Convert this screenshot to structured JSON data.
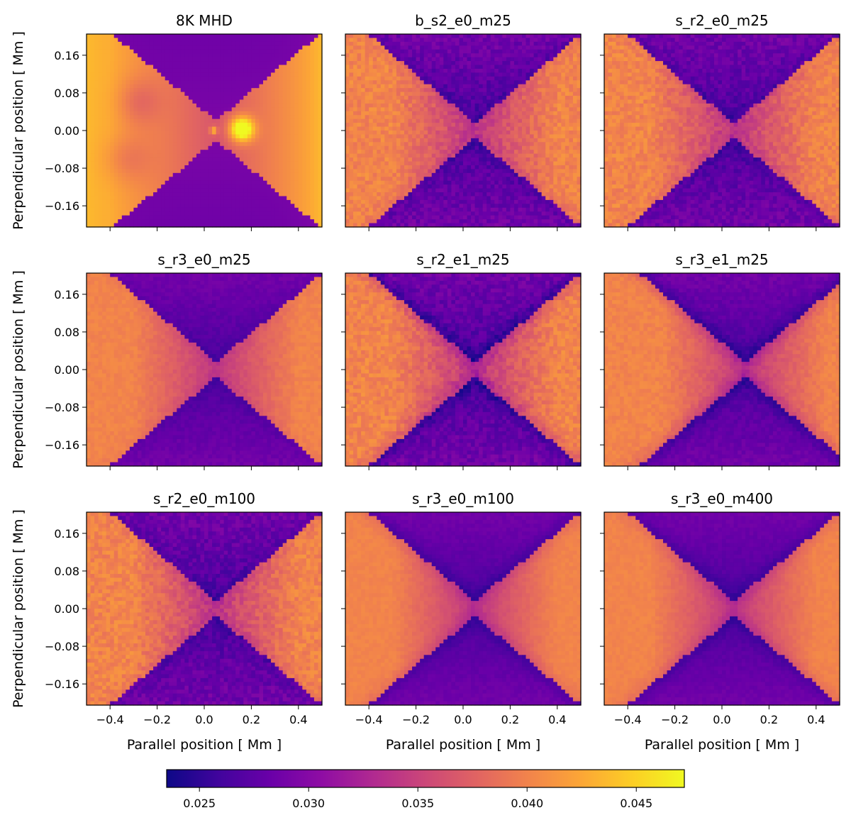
{
  "chart_data": {
    "type": "heatmap",
    "layout": {
      "rows": 3,
      "cols": 3,
      "sharex": true,
      "sharey": true
    },
    "xlabel": "Parallel position [ Mm ]",
    "ylabel": "Perpendicular position [ Mm ]",
    "xlim": [
      -0.5,
      0.5
    ],
    "ylim": [
      -0.205,
      0.205
    ],
    "xticks": [
      -0.4,
      -0.2,
      0.0,
      0.2,
      0.4
    ],
    "xtick_labels": [
      "−0.4",
      "−0.2",
      "0.0",
      "0.2",
      "0.4"
    ],
    "yticks": [
      0.16,
      0.08,
      0.0,
      -0.08,
      -0.16
    ],
    "ytick_labels": [
      "0.16",
      "0.08",
      "0.00",
      "−0.08",
      "−0.16"
    ],
    "colormap": "plasma",
    "colorbar": {
      "range": [
        0.0235,
        0.0472
      ],
      "ticks": [
        0.025,
        0.03,
        0.035,
        0.04,
        0.045
      ],
      "tick_labels": [
        "0.025",
        "0.030",
        "0.035",
        "0.040",
        "0.045"
      ],
      "orientation": "horizontal",
      "placement": "bottom"
    },
    "panels": [
      {
        "title": "8K MHD",
        "kind": "mhd",
        "x_point": 0.05,
        "sharpness": 0.0,
        "noise": 0.0
      },
      {
        "title": "b_s2_e0_m25",
        "kind": "xpoint",
        "x_point": 0.05,
        "sharpness": 0.3,
        "noise": 0.9
      },
      {
        "title": "s_r2_e0_m25",
        "kind": "xpoint",
        "x_point": 0.05,
        "sharpness": 0.3,
        "noise": 0.9
      },
      {
        "title": "s_r3_e0_m25",
        "kind": "xpoint",
        "x_point": 0.05,
        "sharpness": 0.2,
        "noise": 0.4
      },
      {
        "title": "s_r2_e1_m25",
        "kind": "xpoint",
        "x_point": 0.05,
        "sharpness": 0.8,
        "noise": 0.9
      },
      {
        "title": "s_r3_e1_m25",
        "kind": "xpoint",
        "x_point": 0.1,
        "sharpness": 0.7,
        "noise": 0.5
      },
      {
        "title": "s_r2_e0_m100",
        "kind": "xpoint",
        "x_point": 0.05,
        "sharpness": 0.3,
        "noise": 0.9
      },
      {
        "title": "s_r3_e0_m100",
        "kind": "xpoint",
        "x_point": 0.05,
        "sharpness": 0.5,
        "noise": 0.3
      },
      {
        "title": "s_r3_e0_m400",
        "kind": "xpoint",
        "x_point": 0.05,
        "sharpness": 0.5,
        "noise": 0.3
      }
    ]
  }
}
